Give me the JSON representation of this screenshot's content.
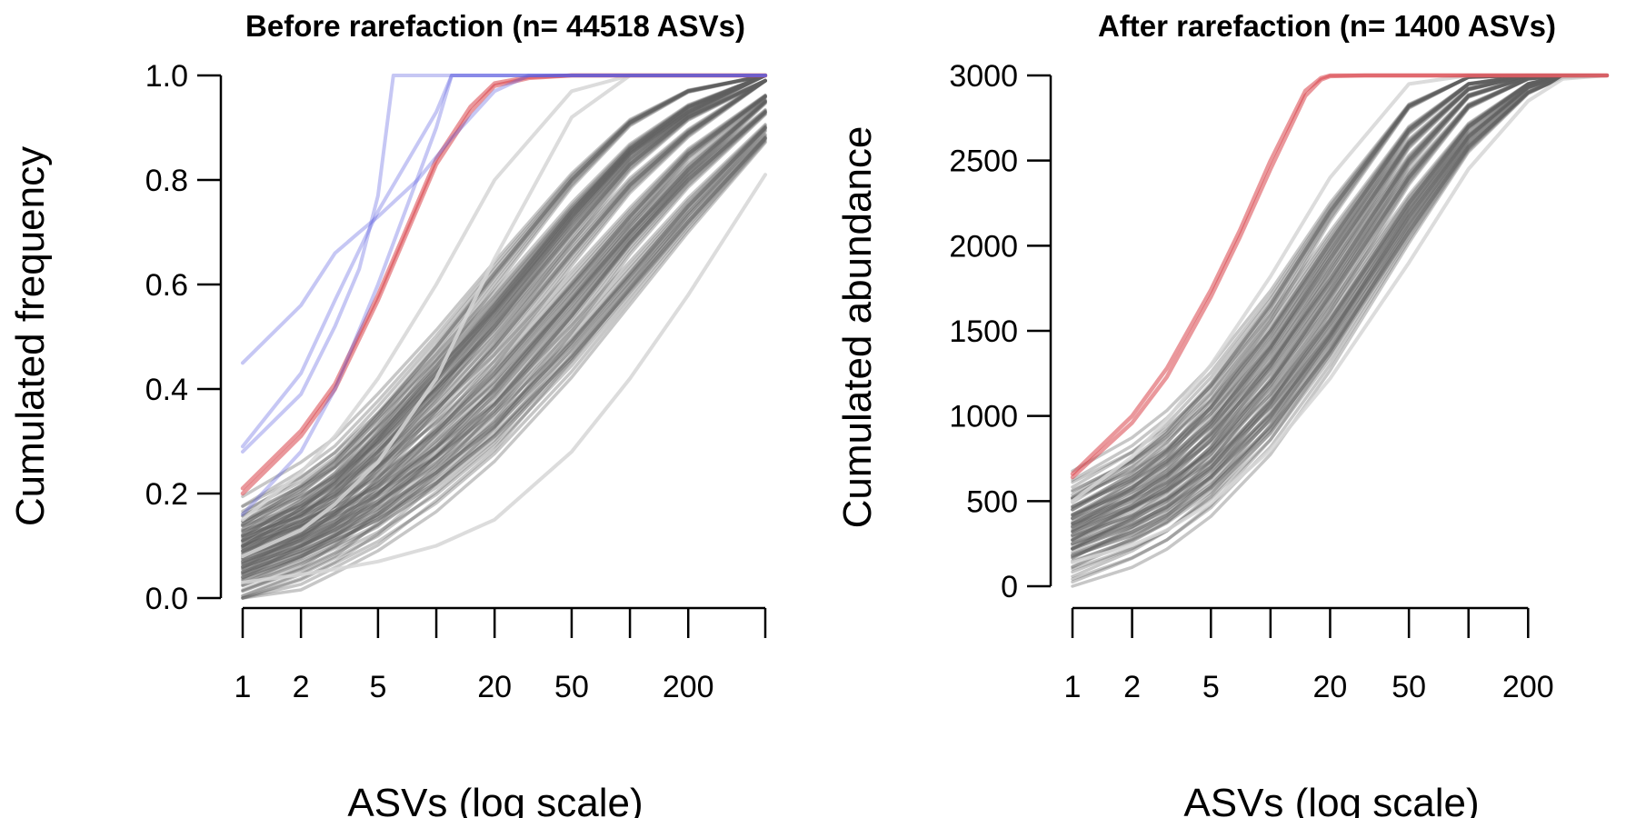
{
  "chart_data": [
    {
      "type": "line",
      "title": "Before rarefaction (n= 44518 ASVs)",
      "xlabel": "ASVs (log scale)",
      "ylabel": "Cumulated frequency",
      "x_scale": "log",
      "xlim": [
        1,
        500
      ],
      "ylim": [
        0,
        1
      ],
      "x_ticks": [
        1,
        2,
        5,
        10,
        20,
        50,
        100,
        200,
        500
      ],
      "x_tick_labels": [
        "1",
        "2",
        "5",
        "",
        "20",
        "50",
        "",
        "200",
        ""
      ],
      "y_ticks": [
        0,
        0.2,
        0.4,
        0.6,
        0.8,
        1.0
      ],
      "y_tick_labels": [
        "0.0",
        "0.2",
        "0.4",
        "0.6",
        "0.8",
        "1.0"
      ],
      "grid": false,
      "legend": "none",
      "colors": {
        "grey_band": "#5f5f5f",
        "light_grey": "#d6d6d6",
        "red": "#d9444a",
        "blue": "#5b5fe0"
      },
      "series": [
        {
          "group": "grey",
          "x": [
            1,
            2,
            3,
            5,
            10,
            20,
            50,
            100,
            200,
            500
          ],
          "y": [
            0.09,
            0.14,
            0.18,
            0.25,
            0.36,
            0.48,
            0.66,
            0.79,
            0.89,
            0.99
          ]
        },
        {
          "group": "grey",
          "x": [
            1,
            2,
            3,
            5,
            10,
            20,
            50,
            100,
            200,
            500
          ],
          "y": [
            0.06,
            0.1,
            0.13,
            0.18,
            0.27,
            0.37,
            0.54,
            0.68,
            0.8,
            0.93
          ]
        },
        {
          "group": "grey",
          "x": [
            1,
            2,
            3,
            5,
            10,
            20,
            50,
            100,
            200,
            500
          ],
          "y": [
            0.12,
            0.18,
            0.23,
            0.31,
            0.43,
            0.56,
            0.74,
            0.86,
            0.94,
            1.0
          ]
        },
        {
          "group": "grey",
          "x": [
            1,
            2,
            3,
            5,
            10,
            20,
            50,
            100,
            200,
            500
          ],
          "y": [
            0.05,
            0.09,
            0.12,
            0.16,
            0.24,
            0.33,
            0.49,
            0.62,
            0.75,
            0.9
          ]
        },
        {
          "group": "grey",
          "x": [
            1,
            2,
            3,
            5,
            10,
            20,
            50,
            100,
            200,
            500
          ],
          "y": [
            0.14,
            0.21,
            0.26,
            0.35,
            0.48,
            0.62,
            0.8,
            0.91,
            0.97,
            1.0
          ]
        },
        {
          "group": "grey",
          "x": [
            1,
            2,
            3,
            5,
            10,
            20,
            50,
            100,
            200,
            500
          ],
          "y": [
            0.08,
            0.12,
            0.16,
            0.22,
            0.32,
            0.43,
            0.6,
            0.73,
            0.85,
            0.96
          ]
        },
        {
          "group": "grey",
          "x": [
            1,
            2,
            3,
            5,
            10,
            20,
            50,
            100,
            200,
            500
          ],
          "y": [
            0.1,
            0.16,
            0.2,
            0.28,
            0.4,
            0.52,
            0.7,
            0.83,
            0.92,
            0.99
          ]
        },
        {
          "group": "grey",
          "x": [
            1,
            2,
            3,
            5,
            10,
            20,
            50,
            100,
            200,
            500
          ],
          "y": [
            0.07,
            0.11,
            0.14,
            0.2,
            0.29,
            0.4,
            0.57,
            0.7,
            0.82,
            0.95
          ]
        },
        {
          "group": "grey",
          "x": [
            1,
            2,
            3,
            5,
            10,
            20,
            50,
            100,
            200,
            500
          ],
          "y": [
            0.11,
            0.17,
            0.22,
            0.3,
            0.42,
            0.55,
            0.73,
            0.85,
            0.93,
            1.0
          ]
        },
        {
          "group": "grey",
          "x": [
            1,
            2,
            3,
            5,
            10,
            20,
            50,
            100,
            200,
            500
          ],
          "y": [
            0.04,
            0.08,
            0.11,
            0.15,
            0.22,
            0.31,
            0.46,
            0.59,
            0.72,
            0.88
          ]
        },
        {
          "group": "light",
          "x": [
            1,
            2,
            3,
            5,
            10,
            20,
            50,
            100,
            200,
            500
          ],
          "y": [
            0.03,
            0.045,
            0.055,
            0.07,
            0.1,
            0.15,
            0.28,
            0.42,
            0.58,
            0.81
          ]
        },
        {
          "group": "light",
          "x": [
            1,
            2,
            3,
            5,
            10,
            20,
            50,
            100,
            200,
            500
          ],
          "y": [
            0.15,
            0.24,
            0.31,
            0.42,
            0.6,
            0.8,
            0.97,
            1.0,
            1.0,
            1.0
          ]
        },
        {
          "group": "light",
          "x": [
            1,
            2,
            3,
            5,
            10,
            20,
            50,
            100,
            200,
            500
          ],
          "y": [
            0.08,
            0.13,
            0.18,
            0.26,
            0.42,
            0.65,
            0.92,
            1.0,
            1.0,
            1.0
          ]
        },
        {
          "group": "red",
          "x": [
            1,
            2,
            3,
            5,
            10,
            15,
            20,
            30,
            50,
            500
          ],
          "y": [
            0.2,
            0.31,
            0.4,
            0.57,
            0.83,
            0.93,
            0.98,
            0.995,
            1.0,
            1.0
          ]
        },
        {
          "group": "red",
          "x": [
            1,
            2,
            3,
            5,
            10,
            15,
            20,
            30,
            50,
            500
          ],
          "y": [
            0.21,
            0.32,
            0.41,
            0.58,
            0.84,
            0.94,
            0.985,
            0.997,
            1.0,
            1.0
          ]
        },
        {
          "group": "blue",
          "x": [
            1,
            2,
            3,
            4,
            5,
            6,
            500
          ],
          "y": [
            0.28,
            0.39,
            0.52,
            0.63,
            0.77,
            1.0,
            1.0
          ]
        },
        {
          "group": "blue",
          "x": [
            1,
            2,
            3,
            5,
            10,
            12,
            500
          ],
          "y": [
            0.29,
            0.43,
            0.57,
            0.74,
            0.93,
            1.0,
            1.0
          ]
        },
        {
          "group": "blue",
          "x": [
            1,
            2,
            3,
            5,
            10,
            12,
            500
          ],
          "y": [
            0.16,
            0.28,
            0.4,
            0.6,
            0.9,
            1.0,
            1.0
          ]
        },
        {
          "group": "blue",
          "x": [
            1,
            2,
            3,
            4,
            5,
            8,
            12,
            20,
            30,
            500
          ],
          "y": [
            0.45,
            0.56,
            0.66,
            0.7,
            0.73,
            0.8,
            0.88,
            0.97,
            1.0,
            1.0
          ]
        }
      ]
    },
    {
      "type": "line",
      "title": "After rarefaction (n= 1400 ASVs)",
      "xlabel": "ASVs (log scale)",
      "ylabel": "Cumulated abundance",
      "x_scale": "log",
      "xlim": [
        1,
        500
      ],
      "ylim": [
        0,
        3000
      ],
      "x_ticks": [
        1,
        2,
        5,
        10,
        20,
        50,
        100,
        200
      ],
      "x_tick_labels": [
        "1",
        "2",
        "5",
        "",
        "20",
        "50",
        "",
        "200"
      ],
      "y_ticks": [
        0,
        500,
        1000,
        1500,
        2000,
        2500,
        3000
      ],
      "y_tick_labels": [
        "0",
        "500",
        "1000",
        "1500",
        "2000",
        "2500",
        "3000"
      ],
      "grid": false,
      "legend": "none",
      "colors": {
        "grey_band": "#5f5f5f",
        "light_grey": "#d6d6d6",
        "red": "#d9444a"
      },
      "series": [
        {
          "group": "grey",
          "x": [
            1,
            2,
            3,
            5,
            10,
            20,
            50,
            100,
            200,
            300,
            500
          ],
          "y": [
            350,
            520,
            650,
            880,
            1300,
            1800,
            2500,
            2880,
            2990,
            3000,
            3000
          ]
        },
        {
          "group": "grey",
          "x": [
            1,
            2,
            3,
            5,
            10,
            20,
            50,
            100,
            200,
            300,
            500
          ],
          "y": [
            250,
            390,
            500,
            700,
            1080,
            1560,
            2250,
            2700,
            2950,
            3000,
            3000
          ]
        },
        {
          "group": "grey",
          "x": [
            1,
            2,
            3,
            5,
            10,
            20,
            50,
            100,
            200,
            300,
            500
          ],
          "y": [
            450,
            640,
            790,
            1050,
            1500,
            2020,
            2680,
            2950,
            3000,
            3000,
            3000
          ]
        },
        {
          "group": "grey",
          "x": [
            1,
            2,
            3,
            5,
            10,
            20,
            50,
            100,
            200,
            300,
            500
          ],
          "y": [
            180,
            300,
            400,
            580,
            920,
            1380,
            2080,
            2580,
            2900,
            2990,
            3000
          ]
        },
        {
          "group": "grey",
          "x": [
            1,
            2,
            3,
            5,
            10,
            20,
            50,
            100,
            200,
            300,
            500
          ],
          "y": [
            520,
            730,
            900,
            1180,
            1650,
            2200,
            2820,
            2990,
            3000,
            3000,
            3000
          ]
        },
        {
          "group": "grey",
          "x": [
            1,
            2,
            3,
            5,
            10,
            20,
            50,
            100,
            200,
            300,
            500
          ],
          "y": [
            300,
            460,
            580,
            800,
            1200,
            1700,
            2400,
            2820,
            2980,
            3000,
            3000
          ]
        },
        {
          "group": "grey",
          "x": [
            1,
            2,
            3,
            5,
            10,
            20,
            50,
            100,
            200,
            300,
            500
          ],
          "y": [
            400,
            580,
            720,
            960,
            1400,
            1920,
            2600,
            2920,
            3000,
            3000,
            3000
          ]
        },
        {
          "group": "grey",
          "x": [
            1,
            2,
            3,
            5,
            10,
            20,
            50,
            100,
            200,
            300,
            500
          ],
          "y": [
            220,
            350,
            450,
            640,
            1000,
            1470,
            2170,
            2640,
            2930,
            3000,
            3000
          ]
        },
        {
          "group": "light",
          "x": [
            1,
            2,
            3,
            5,
            10,
            20,
            50,
            100,
            200,
            300,
            500
          ],
          "y": [
            140,
            240,
            330,
            490,
            800,
            1220,
            1900,
            2450,
            2850,
            2980,
            3000
          ]
        },
        {
          "group": "light",
          "x": [
            1,
            2,
            3,
            5,
            10,
            20,
            50,
            100,
            200,
            300,
            500
          ],
          "y": [
            500,
            760,
            980,
            1300,
            1820,
            2400,
            2950,
            3000,
            3000,
            3000,
            3000
          ]
        },
        {
          "group": "red",
          "x": [
            1,
            2,
            3,
            5,
            7,
            10,
            15,
            18,
            20,
            30,
            500
          ],
          "y": [
            640,
            960,
            1230,
            1700,
            2050,
            2450,
            2880,
            2975,
            2995,
            3000,
            3000
          ]
        },
        {
          "group": "red",
          "x": [
            1,
            2,
            3,
            5,
            7,
            10,
            15,
            18,
            20,
            30,
            500
          ],
          "y": [
            660,
            1000,
            1280,
            1740,
            2090,
            2500,
            2910,
            2985,
            3000,
            3000,
            3000
          ]
        }
      ]
    }
  ]
}
